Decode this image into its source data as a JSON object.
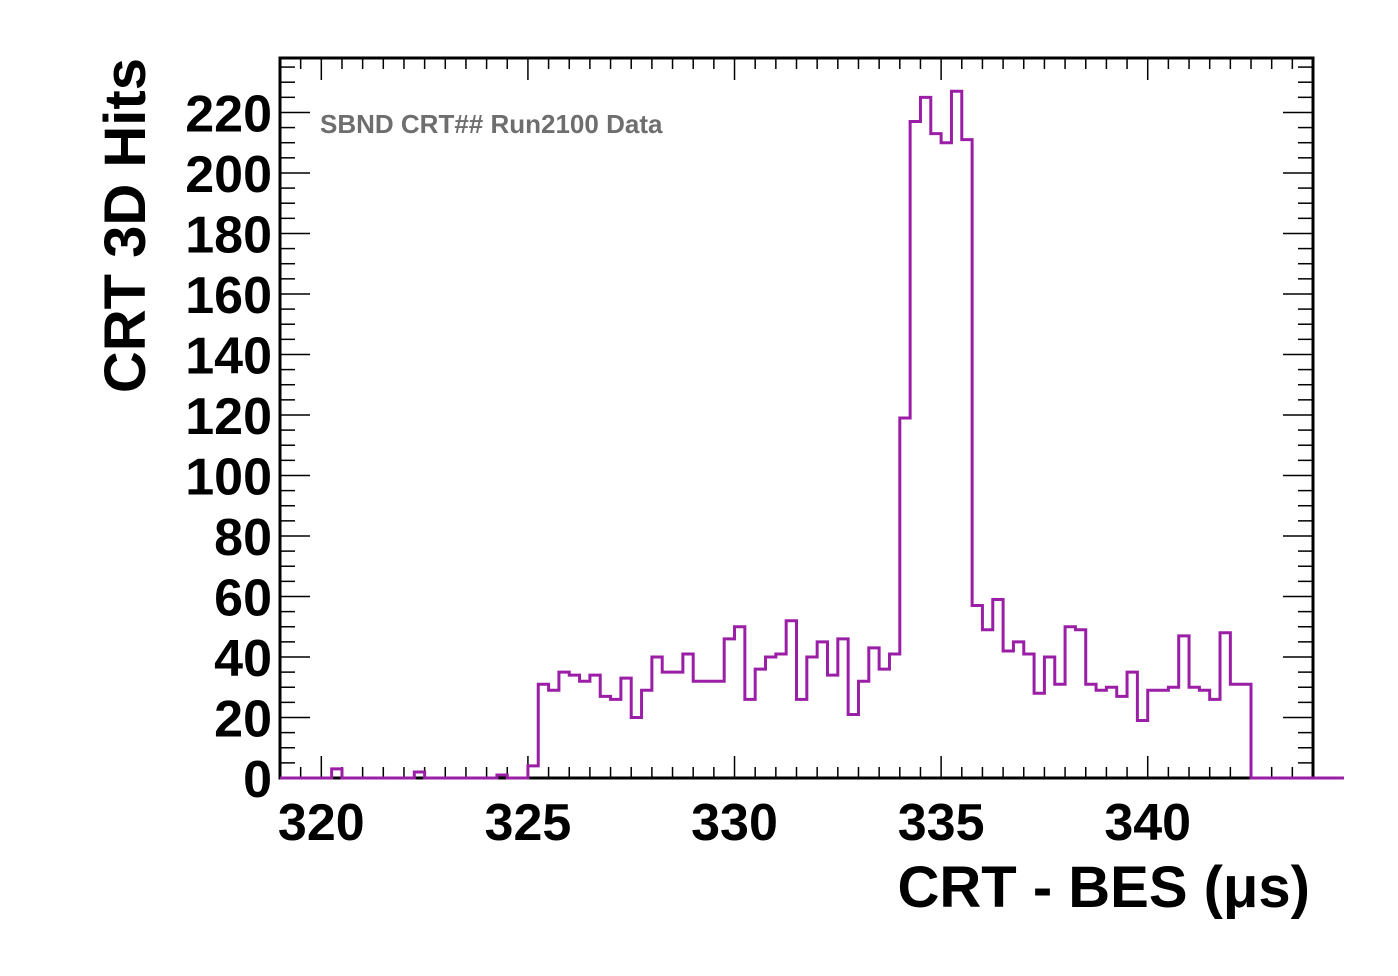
{
  "chart_data": {
    "type": "histogram",
    "xlabel": "CRT - BES (μs)",
    "ylabel": "CRT 3D Hits",
    "annotation": "SBND CRT## Run2100 Data",
    "xlim": [
      319,
      344
    ],
    "ylim": [
      0,
      238
    ],
    "bin_width": 0.25,
    "bin_start": 319,
    "xticks": [
      320,
      325,
      330,
      335,
      340
    ],
    "yticks": [
      0,
      20,
      40,
      60,
      80,
      100,
      120,
      140,
      160,
      180,
      200,
      220
    ],
    "line_color": "#9b1ea6",
    "values": [
      0,
      0,
      0,
      0,
      0,
      3,
      0,
      0,
      0,
      0,
      0,
      0,
      0,
      2,
      0,
      0,
      0,
      0,
      0,
      0,
      0,
      1,
      0,
      0,
      4,
      31,
      29,
      35,
      34,
      32,
      34,
      27,
      26,
      33,
      20,
      29,
      40,
      35,
      35,
      41,
      32,
      32,
      32,
      46,
      50,
      26,
      36,
      40,
      41,
      52,
      26,
      40,
      45,
      34,
      46,
      21,
      32,
      43,
      36,
      41,
      119,
      217,
      225,
      213,
      210,
      227,
      211,
      57,
      49,
      59,
      42,
      45,
      41,
      28,
      40,
      31,
      50,
      49,
      31,
      29,
      30,
      27,
      35,
      19,
      29,
      29,
      30,
      47,
      30,
      29,
      26,
      48,
      31,
      31,
      0,
      0,
      0,
      0,
      0,
      0,
      0,
      0,
      0,
      0
    ]
  }
}
